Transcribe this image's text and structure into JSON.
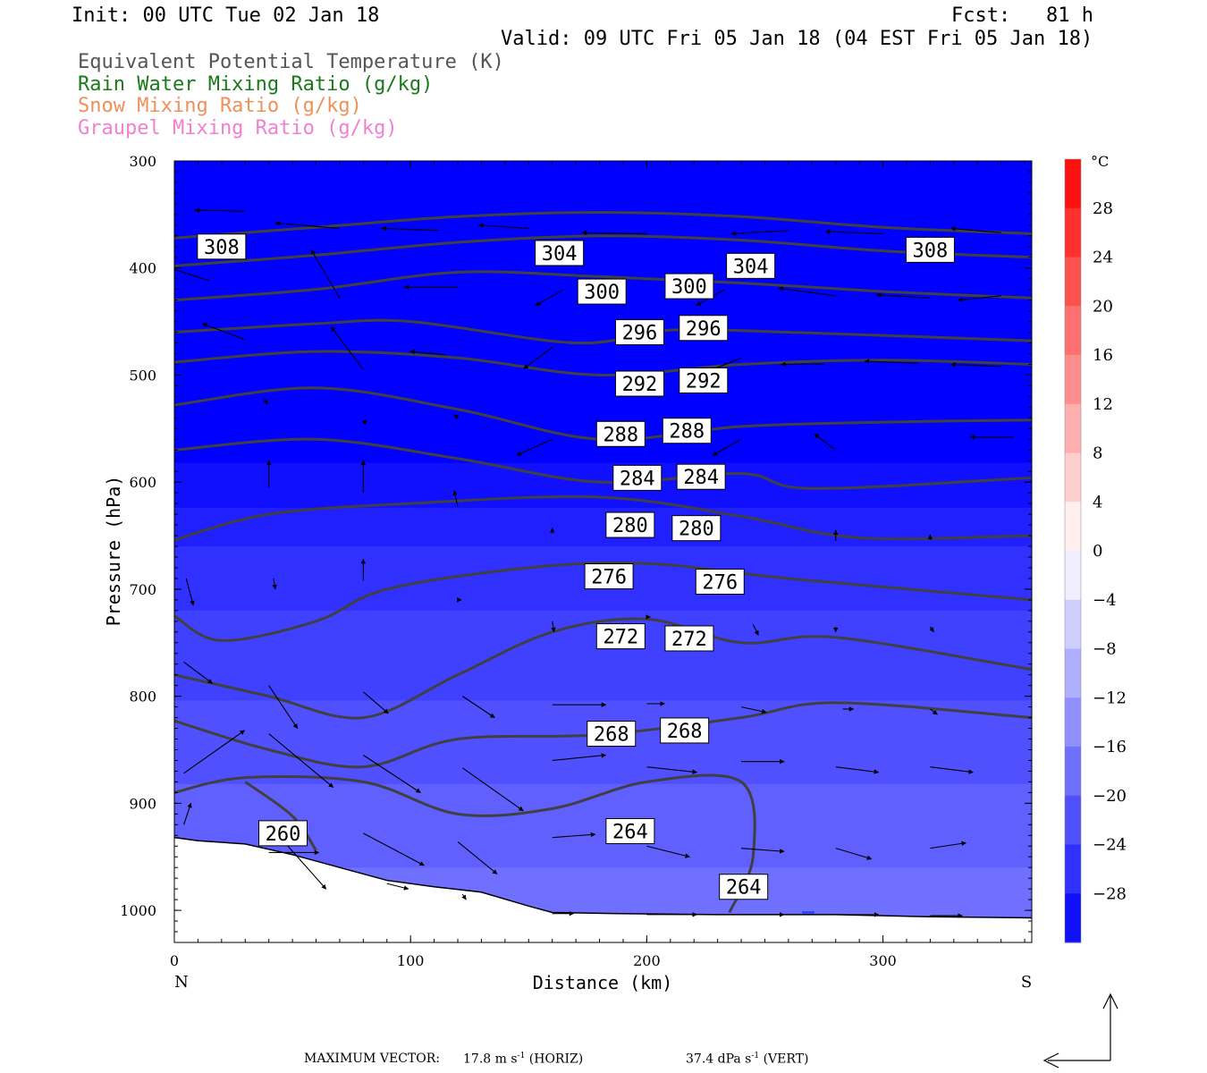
{
  "header": {
    "init": "Init: 00 UTC Tue 02 Jan 18",
    "fcst": "Fcst:   81 h",
    "valid": "Valid: 09 UTC Fri 05 Jan 18 (04 EST Fri 05 Jan 18)",
    "fields": [
      {
        "label": "Equivalent Potential Temperature (K)",
        "color": "#555555"
      },
      {
        "label": "Rain Water Mixing Ratio (g/kg)",
        "color": "#1a7a1a"
      },
      {
        "label": "Snow Mixing Ratio (g/kg)",
        "color": "#f0905a"
      },
      {
        "label": "Graupel Mixing Ratio (g/kg)",
        "color": "#f080d0"
      }
    ]
  },
  "chart_data": {
    "type": "cross-section contour",
    "xlabel": "Distance (km)",
    "ylabel": "Pressure (hPa)",
    "xlim": [
      0,
      363
    ],
    "ylim": [
      1030,
      300
    ],
    "x_ticks": [
      0,
      100,
      200,
      300
    ],
    "y_ticks": [
      300,
      400,
      500,
      600,
      700,
      800,
      900,
      1000
    ],
    "x_end_labels": {
      "left": "N",
      "right": "S"
    },
    "colorbar": {
      "unit": "°C",
      "range": [
        -32,
        32
      ],
      "step": 4,
      "labels": [
        "28",
        "24",
        "20",
        "16",
        "12",
        "8",
        "4",
        "0",
        "−4",
        "−8",
        "−12",
        "−16",
        "−20",
        "−24",
        "−28"
      ]
    },
    "temperature_fill": [
      {
        "p": 300,
        "t": -31
      },
      {
        "p": 560,
        "t": -31
      },
      {
        "p": 620,
        "t": -28
      },
      {
        "p": 680,
        "t": -25
      },
      {
        "p": 760,
        "t": -23
      },
      {
        "p": 840,
        "t": -21
      },
      {
        "p": 920,
        "t": -19
      },
      {
        "p": 1000,
        "t": -17
      }
    ],
    "theta_e_contours": [
      {
        "label": "308",
        "points": [
          [
            0,
            372
          ],
          [
            60,
            362
          ],
          [
            120,
            352
          ],
          [
            180,
            348
          ],
          [
            240,
            352
          ],
          [
            300,
            362
          ],
          [
            363,
            368
          ]
        ]
      },
      {
        "label": "304",
        "points": [
          [
            0,
            398
          ],
          [
            60,
            388
          ],
          [
            120,
            376
          ],
          [
            180,
            370
          ],
          [
            240,
            374
          ],
          [
            300,
            384
          ],
          [
            363,
            390
          ]
        ]
      },
      {
        "label": "300",
        "points": [
          [
            0,
            430
          ],
          [
            60,
            420
          ],
          [
            120,
            404
          ],
          [
            180,
            408
          ],
          [
            240,
            414
          ],
          [
            300,
            422
          ],
          [
            363,
            428
          ]
        ]
      },
      {
        "label": "296",
        "points": [
          [
            0,
            460
          ],
          [
            60,
            452
          ],
          [
            100,
            450
          ],
          [
            170,
            470
          ],
          [
            210,
            458
          ],
          [
            260,
            460
          ],
          [
            363,
            468
          ]
        ]
      },
      {
        "label": "292",
        "points": [
          [
            0,
            488
          ],
          [
            60,
            478
          ],
          [
            120,
            484
          ],
          [
            180,
            500
          ],
          [
            240,
            490
          ],
          [
            300,
            486
          ],
          [
            363,
            490
          ]
        ]
      },
      {
        "label": "288",
        "points": [
          [
            0,
            528
          ],
          [
            60,
            512
          ],
          [
            120,
            532
          ],
          [
            180,
            560
          ],
          [
            240,
            548
          ],
          [
            300,
            544
          ],
          [
            363,
            542
          ]
        ]
      },
      {
        "label": "284",
        "points": [
          [
            0,
            570
          ],
          [
            60,
            560
          ],
          [
            120,
            578
          ],
          [
            180,
            600
          ],
          [
            240,
            592
          ],
          [
            270,
            606
          ],
          [
            363,
            596
          ]
        ]
      },
      {
        "label": "280",
        "points": [
          [
            0,
            654
          ],
          [
            40,
            630
          ],
          [
            100,
            620
          ],
          [
            180,
            614
          ],
          [
            240,
            632
          ],
          [
            290,
            652
          ],
          [
            363,
            650
          ]
        ]
      },
      {
        "label": "276",
        "points": [
          [
            0,
            725
          ],
          [
            20,
            748
          ],
          [
            60,
            730
          ],
          [
            90,
            700
          ],
          [
            150,
            680
          ],
          [
            200,
            676
          ],
          [
            260,
            690
          ],
          [
            363,
            710
          ]
        ]
      },
      {
        "label": "272",
        "points": [
          [
            0,
            780
          ],
          [
            40,
            800
          ],
          [
            80,
            820
          ],
          [
            120,
            780
          ],
          [
            160,
            740
          ],
          [
            200,
            728
          ],
          [
            240,
            750
          ],
          [
            280,
            745
          ],
          [
            363,
            775
          ]
        ]
      },
      {
        "label": "268",
        "points": [
          [
            0,
            823
          ],
          [
            40,
            850
          ],
          [
            80,
            866
          ],
          [
            120,
            840
          ],
          [
            180,
            836
          ],
          [
            240,
            820
          ],
          [
            280,
            806
          ],
          [
            363,
            820
          ]
        ]
      },
      {
        "label": "264",
        "points": [
          [
            0,
            890
          ],
          [
            30,
            876
          ],
          [
            80,
            880
          ],
          [
            120,
            910
          ],
          [
            160,
            905
          ],
          [
            200,
            880
          ],
          [
            240,
            880
          ],
          [
            245,
            950
          ],
          [
            235,
            1002
          ]
        ]
      },
      {
        "label": "260",
        "points": [
          [
            30,
            880
          ],
          [
            50,
            912
          ],
          [
            60,
            944
          ]
        ]
      }
    ],
    "contour_labels": [
      {
        "text": "308",
        "x": 20,
        "p": 380
      },
      {
        "text": "304",
        "x": 163,
        "p": 386
      },
      {
        "text": "308",
        "x": 320,
        "p": 383
      },
      {
        "text": "304",
        "x": 244,
        "p": 398
      },
      {
        "text": "300",
        "x": 181,
        "p": 422
      },
      {
        "text": "300",
        "x": 218,
        "p": 417
      },
      {
        "text": "296",
        "x": 197,
        "p": 460
      },
      {
        "text": "296",
        "x": 224,
        "p": 456
      },
      {
        "text": "292",
        "x": 197,
        "p": 508
      },
      {
        "text": "292",
        "x": 224,
        "p": 505
      },
      {
        "text": "288",
        "x": 189,
        "p": 555
      },
      {
        "text": "288",
        "x": 217,
        "p": 552
      },
      {
        "text": "284",
        "x": 196,
        "p": 596
      },
      {
        "text": "284",
        "x": 223,
        "p": 595
      },
      {
        "text": "280",
        "x": 193,
        "p": 640
      },
      {
        "text": "280",
        "x": 221,
        "p": 643
      },
      {
        "text": "276",
        "x": 184,
        "p": 688
      },
      {
        "text": "276",
        "x": 231,
        "p": 693
      },
      {
        "text": "272",
        "x": 189,
        "p": 744
      },
      {
        "text": "272",
        "x": 218,
        "p": 746
      },
      {
        "text": "268",
        "x": 185,
        "p": 835
      },
      {
        "text": "268",
        "x": 216,
        "p": 832
      },
      {
        "text": "264",
        "x": 193,
        "p": 926
      },
      {
        "text": "264",
        "x": 241,
        "p": 978
      },
      {
        "text": "260",
        "x": 46,
        "p": 928
      }
    ],
    "terrain": [
      [
        0,
        932
      ],
      [
        10,
        935
      ],
      [
        30,
        938
      ],
      [
        50,
        948
      ],
      [
        70,
        960
      ],
      [
        90,
        972
      ],
      [
        110,
        978
      ],
      [
        130,
        983
      ],
      [
        150,
        996
      ],
      [
        160,
        1002
      ],
      [
        185,
        1003
      ],
      [
        230,
        1004
      ],
      [
        280,
        1004
      ],
      [
        320,
        1006
      ],
      [
        363,
        1007
      ]
    ],
    "vectors": [
      {
        "x": 30,
        "p": 347,
        "u": -14,
        "w": 0.1
      },
      {
        "x": 70,
        "p": 363,
        "u": -18,
        "w": 0.5
      },
      {
        "x": 112,
        "p": 365,
        "u": -16,
        "w": 0.2
      },
      {
        "x": 150,
        "p": 363,
        "u": -14,
        "w": 0.3
      },
      {
        "x": 200,
        "p": 368,
        "u": -18,
        "w": 0.1
      },
      {
        "x": 260,
        "p": 365,
        "u": -16,
        "w": -0.3
      },
      {
        "x": 300,
        "p": 368,
        "u": -16,
        "w": 0.2
      },
      {
        "x": 350,
        "p": 367,
        "u": -14,
        "w": 0.4
      },
      {
        "x": 15,
        "p": 412,
        "u": -14,
        "w": 1.5
      },
      {
        "x": 70,
        "p": 428,
        "u": -8,
        "w": 4.5
      },
      {
        "x": 120,
        "p": 418,
        "u": -15,
        "w": 0
      },
      {
        "x": 165,
        "p": 420,
        "u": -8,
        "w": -1.5
      },
      {
        "x": 233,
        "p": 420,
        "u": -8,
        "w": -1.5
      },
      {
        "x": 280,
        "p": 426,
        "u": -16,
        "w": 0.7
      },
      {
        "x": 320,
        "p": 428,
        "u": -15,
        "w": 0.3
      },
      {
        "x": 350,
        "p": 426,
        "u": -12,
        "w": -0.4
      },
      {
        "x": 30,
        "p": 467,
        "u": -12,
        "w": 1.5
      },
      {
        "x": 80,
        "p": 495,
        "u": -9,
        "w": 4
      },
      {
        "x": 115,
        "p": 481,
        "u": -10,
        "w": 0.3
      },
      {
        "x": 160,
        "p": 474,
        "u": -8,
        "w": -2
      },
      {
        "x": 240,
        "p": 484,
        "u": -9,
        "w": -1.2
      },
      {
        "x": 275,
        "p": 490,
        "u": -12,
        "w": 0
      },
      {
        "x": 315,
        "p": 489,
        "u": -15,
        "w": 0.2
      },
      {
        "x": 350,
        "p": 492,
        "u": -14,
        "w": 0.2
      },
      {
        "x": 38,
        "p": 522,
        "u": 1,
        "w": -0.5
      },
      {
        "x": 80,
        "p": 545,
        "u": 1,
        "w": 0.3
      },
      {
        "x": 120,
        "p": 540,
        "u": -1,
        "w": 0.3
      },
      {
        "x": 160,
        "p": 560,
        "u": -10,
        "w": -1.5
      },
      {
        "x": 240,
        "p": 560,
        "u": -8,
        "w": -1.5
      },
      {
        "x": 280,
        "p": 570,
        "u": -6,
        "w": 1.5
      },
      {
        "x": 355,
        "p": 558,
        "u": -12,
        "w": 0
      },
      {
        "x": 40,
        "p": 605,
        "u": 0,
        "w": 2.5
      },
      {
        "x": 80,
        "p": 610,
        "u": 0,
        "w": 3
      },
      {
        "x": 120,
        "p": 623,
        "u": -1,
        "w": 1.5
      },
      {
        "x": 160,
        "p": 648,
        "u": 0,
        "w": 0.5
      },
      {
        "x": 280,
        "p": 655,
        "u": 0,
        "w": 1
      },
      {
        "x": 320,
        "p": 654,
        "u": 0,
        "w": 0.5
      },
      {
        "x": 5,
        "p": 690,
        "u": 2,
        "w": -2.5
      },
      {
        "x": 42,
        "p": 690,
        "u": 0.5,
        "w": -1
      },
      {
        "x": 80,
        "p": 692,
        "u": 0,
        "w": 2
      },
      {
        "x": 120,
        "p": 710,
        "u": 1,
        "w": 0
      },
      {
        "x": 160,
        "p": 730,
        "u": 0.5,
        "w": -1
      },
      {
        "x": 200,
        "p": 726,
        "u": 1,
        "w": 0
      },
      {
        "x": 245,
        "p": 733,
        "u": 1.5,
        "w": -1
      },
      {
        "x": 280,
        "p": 735,
        "u": 0,
        "w": -0.5
      },
      {
        "x": 320,
        "p": 735,
        "u": 1,
        "w": -0.5
      },
      {
        "x": 4,
        "p": 768,
        "u": 8,
        "w": -2
      },
      {
        "x": 40,
        "p": 790,
        "u": 8,
        "w": -4
      },
      {
        "x": 80,
        "p": 796,
        "u": 7,
        "w": -2
      },
      {
        "x": 122,
        "p": 800,
        "u": 9,
        "w": -2
      },
      {
        "x": 160,
        "p": 808,
        "u": 15,
        "w": 0
      },
      {
        "x": 200,
        "p": 807,
        "u": 5,
        "w": 0
      },
      {
        "x": 240,
        "p": 810,
        "u": 7,
        "w": -0.5
      },
      {
        "x": 283,
        "p": 812,
        "u": 3,
        "w": 0
      },
      {
        "x": 320,
        "p": 812,
        "u": 2,
        "w": -0.5
      },
      {
        "x": 4,
        "p": 872,
        "u": 17,
        "w": 4
      },
      {
        "x": 40,
        "p": 835,
        "u": 18,
        "w": -5
      },
      {
        "x": 80,
        "p": 855,
        "u": 16,
        "w": -3.5
      },
      {
        "x": 122,
        "p": 867,
        "u": 17,
        "w": -4
      },
      {
        "x": 160,
        "p": 860,
        "u": 15,
        "w": 0.5
      },
      {
        "x": 200,
        "p": 866,
        "u": 14,
        "w": -0.5
      },
      {
        "x": 240,
        "p": 861,
        "u": 12,
        "w": 0
      },
      {
        "x": 280,
        "p": 866,
        "u": 12,
        "w": -0.5
      },
      {
        "x": 320,
        "p": 866,
        "u": 12,
        "w": -0.5
      },
      {
        "x": 4,
        "p": 920,
        "u": 2,
        "w": 2
      },
      {
        "x": 40,
        "p": 920,
        "u": 16,
        "w": -6
      },
      {
        "x": 80,
        "p": 928,
        "u": 17,
        "w": -3
      },
      {
        "x": 120,
        "p": 936,
        "u": 11,
        "w": -3
      },
      {
        "x": 160,
        "p": 932,
        "u": 12,
        "w": 0.3
      },
      {
        "x": 200,
        "p": 940,
        "u": 12,
        "w": -1
      },
      {
        "x": 240,
        "p": 942,
        "u": 12,
        "w": -0.3
      },
      {
        "x": 280,
        "p": 942,
        "u": 10,
        "w": -1
      },
      {
        "x": 320,
        "p": 942,
        "u": 10,
        "w": 0.5
      },
      {
        "x": 40,
        "p": 946,
        "u": 14,
        "w": 0
      },
      {
        "x": 90,
        "p": 975,
        "u": 6,
        "w": -0.5
      },
      {
        "x": 122,
        "p": 985,
        "u": 1,
        "w": -0.5
      },
      {
        "x": 160,
        "p": 1003,
        "u": 6,
        "w": 0
      },
      {
        "x": 200,
        "p": 1004,
        "u": 14,
        "w": 0
      },
      {
        "x": 240,
        "p": 1004,
        "u": 12,
        "w": 0
      },
      {
        "x": 280,
        "p": 1004,
        "u": 12,
        "w": 0
      },
      {
        "x": 320,
        "p": 1005,
        "u": 9,
        "w": 0
      }
    ],
    "graupel_marks": [
      {
        "x": 268,
        "p": 1002
      }
    ]
  },
  "footer": {
    "max_vector_label": "MAXIMUM VECTOR:",
    "horiz_value": "17.8 m s",
    "horiz_exp": "-1",
    "horiz_tag": " (HORIZ)",
    "vert_value": "37.4 dPa s",
    "vert_exp": "-1",
    "vert_tag": " (VERT)"
  }
}
